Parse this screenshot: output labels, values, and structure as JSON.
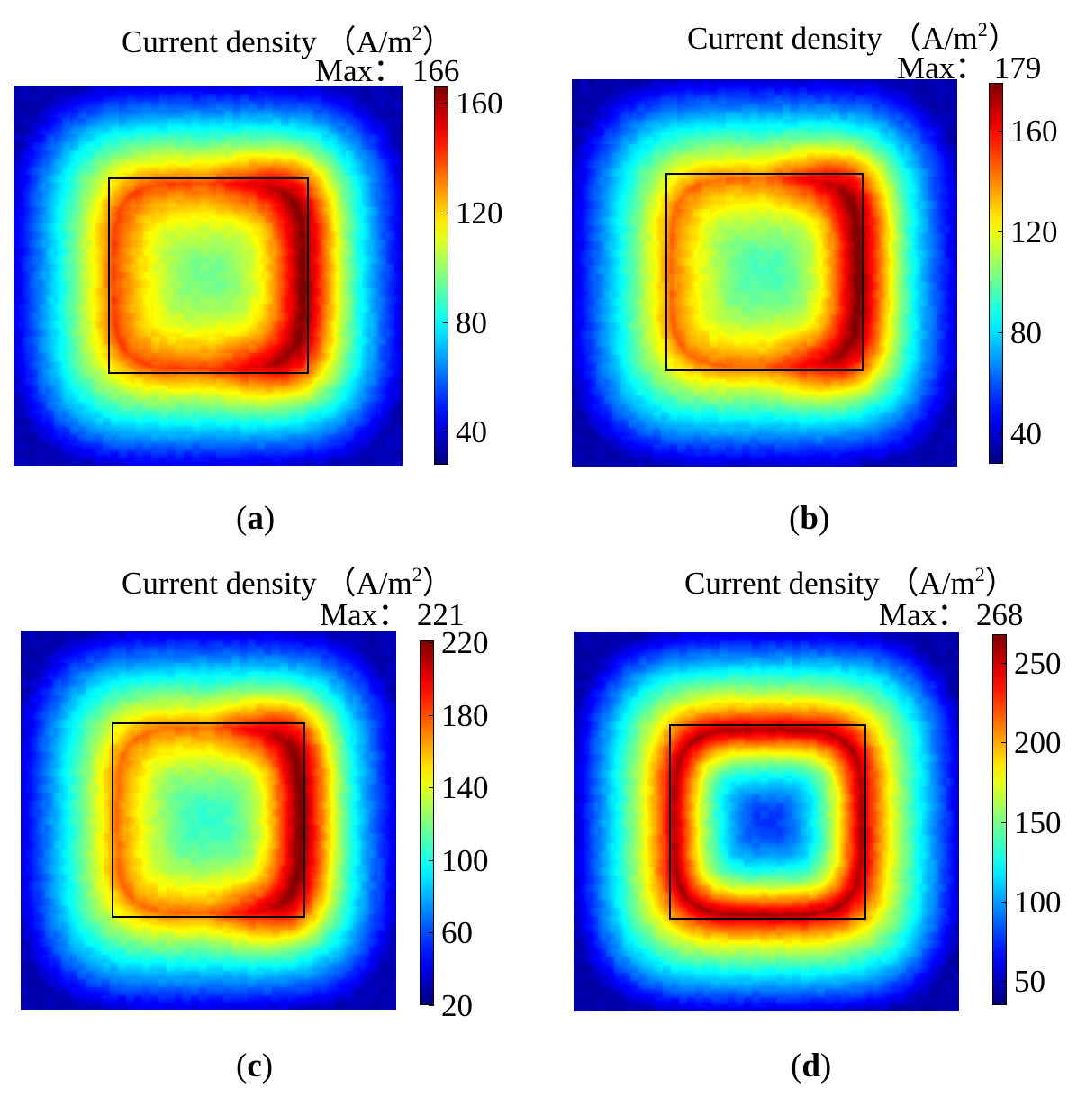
{
  "title_prefix": "Current density",
  "title_unit_open": "（A/m",
  "title_unit_exp": "2",
  "title_unit_close": "）",
  "max_prefix": "Max：",
  "colormap": "jet",
  "chart_data": [
    {
      "type": "heatmap",
      "panel": "a",
      "title": "Current density（A/m2）",
      "max_label": "166",
      "colorbar_ticks": [
        "40",
        "80",
        "120",
        "160"
      ],
      "colorbar_range": [
        28,
        166
      ],
      "value_at_center": 95,
      "ring_value": 140,
      "hot_side": "right",
      "hot_value": 166,
      "corner_value": 35
    },
    {
      "type": "heatmap",
      "panel": "b",
      "title": "Current density（A/m2）",
      "max_label": "179",
      "colorbar_ticks": [
        "40",
        "80",
        "120",
        "160"
      ],
      "colorbar_range": [
        28,
        179
      ],
      "value_at_center": 95,
      "ring_value": 145,
      "hot_side": "right",
      "hot_value": 179,
      "corner_value": 35
    },
    {
      "type": "heatmap",
      "panel": "c",
      "title": "Current density（A/m2）",
      "max_label": "221",
      "colorbar_ticks": [
        "20",
        "60",
        "100",
        "140",
        "180",
        "220"
      ],
      "colorbar_range": [
        20,
        221
      ],
      "value_at_center": 105,
      "ring_value": 175,
      "hot_side": "right",
      "hot_value": 221,
      "corner_value": 30
    },
    {
      "type": "heatmap",
      "panel": "d",
      "title": "Current density（A/m2）",
      "max_label": "268",
      "colorbar_ticks": [
        "50",
        "100",
        "150",
        "200",
        "250"
      ],
      "colorbar_range": [
        35,
        268
      ],
      "value_at_center": 75,
      "ring_value": 245,
      "hot_side": "none",
      "hot_value": 268,
      "corner_value": 45
    }
  ],
  "captions": [
    {
      "open": "(",
      "letter": "a",
      "close": ")"
    },
    {
      "open": "(",
      "letter": "b",
      "close": ")"
    },
    {
      "open": "(",
      "letter": "c",
      "close": ")"
    },
    {
      "open": "(",
      "letter": "d",
      "close": ")"
    }
  ]
}
